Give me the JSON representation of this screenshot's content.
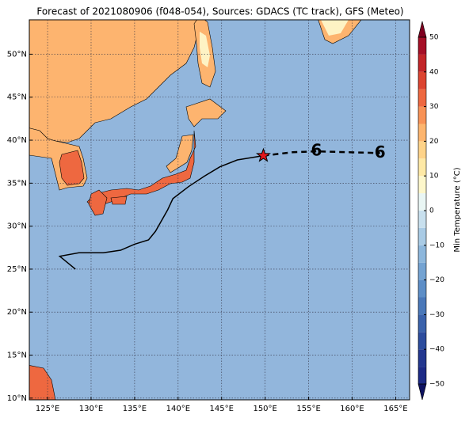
{
  "map": {
    "title": "Forecast of 2021080906 (f048-054), Sources: GDACS (TC track), GFS (Meteo)",
    "lonlim": [
      122.9,
      166.6
    ],
    "latlim": [
      9.8,
      54
    ],
    "lon_ticks": [
      {
        "value": 125,
        "label": "125°E"
      },
      {
        "value": 130,
        "label": "130°E"
      },
      {
        "value": 135,
        "label": "135°E"
      },
      {
        "value": 140,
        "label": "140°E"
      },
      {
        "value": 145,
        "label": "145°E"
      },
      {
        "value": 150,
        "label": "150°E"
      },
      {
        "value": 155,
        "label": "155°E"
      },
      {
        "value": 160,
        "label": "160°E"
      },
      {
        "value": 165,
        "label": "165°E"
      }
    ],
    "lat_ticks": [
      {
        "value": 10,
        "label": "10°N"
      },
      {
        "value": 15,
        "label": "15°N"
      },
      {
        "value": 20,
        "label": "20°N"
      },
      {
        "value": 25,
        "label": "25°N"
      },
      {
        "value": 30,
        "label": "30°N"
      },
      {
        "value": 35,
        "label": "35°N"
      },
      {
        "value": 40,
        "label": "40°N"
      },
      {
        "value": 45,
        "label": "45°N"
      },
      {
        "value": 50,
        "label": "50°N"
      }
    ],
    "track": {
      "lon": [
        128.2,
        126.4,
        128.6,
        131.4,
        133.4,
        135.0,
        136.6,
        137.4,
        138.8,
        139.4,
        141.2,
        143.0,
        144.8,
        146.8,
        149.8
      ],
      "lat": [
        25.0,
        26.5,
        26.9,
        26.9,
        27.2,
        27.9,
        28.4,
        29.4,
        31.9,
        33.2,
        34.6,
        35.8,
        36.9,
        37.7,
        38.2
      ]
    },
    "forecast": {
      "lon": [
        149.8,
        153.2,
        155.9,
        159.5,
        163.2
      ],
      "lat": [
        38.2,
        38.6,
        38.7,
        38.6,
        38.5
      ]
    },
    "colorbar": {
      "label": "Min Temperature (°C)",
      "lim": [
        -50,
        50
      ],
      "ticks": [
        {
          "value": 50,
          "label": "50"
        },
        {
          "value": 40,
          "label": "40"
        },
        {
          "value": 30,
          "label": "30"
        },
        {
          "value": 20,
          "label": "20"
        },
        {
          "value": 10,
          "label": "10"
        },
        {
          "value": 0,
          "label": "0"
        },
        {
          "value": -10,
          "label": "−10"
        },
        {
          "value": -20,
          "label": "−20"
        },
        {
          "value": -30,
          "label": "−30"
        },
        {
          "value": -40,
          "label": "−40"
        },
        {
          "value": -50,
          "label": "−50"
        }
      ],
      "colors": [
        "#1c2a86",
        "#23378f",
        "#2c4c9d",
        "#3a62ab",
        "#4a78b9",
        "#5d8ec7",
        "#74a3d2",
        "#8db7dc",
        "#a9cbe5",
        "#c8e0ee",
        "#e9f6f4",
        "#fdf7cb",
        "#fee9a6",
        "#fed389",
        "#fdb56e",
        "#f89256",
        "#ee6840",
        "#dc4430",
        "#c22528",
        "#a50f26"
      ],
      "extend_colors": [
        "#0d1160",
        "#7f0020"
      ]
    }
  }
}
